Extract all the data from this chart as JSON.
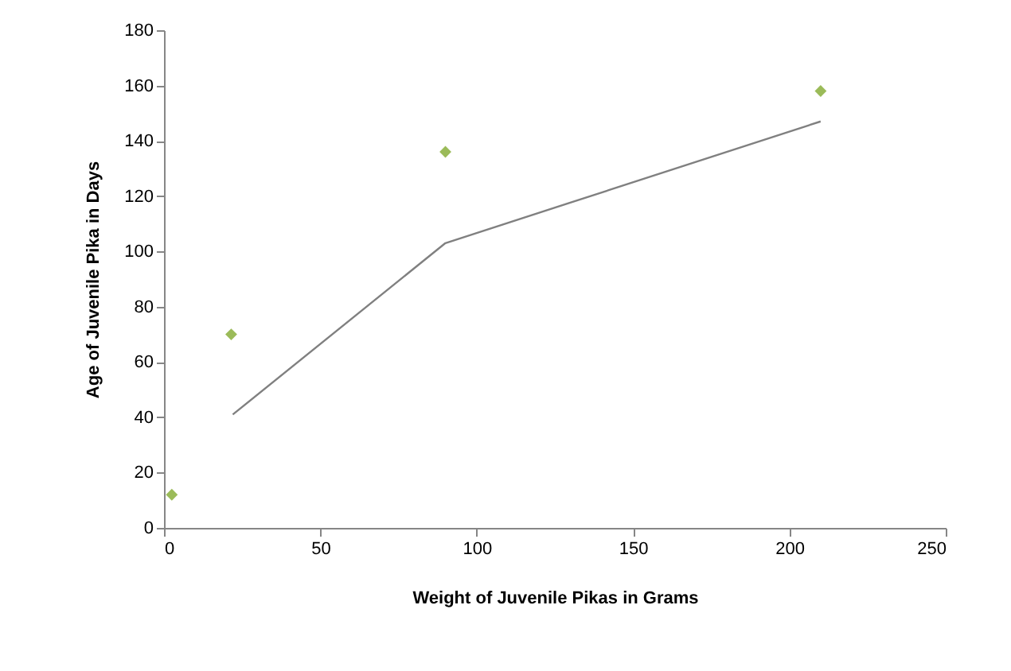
{
  "chart_data": {
    "type": "scatter",
    "xlabel": "Weight of Juvenile Pikas in Grams",
    "ylabel": "Age of Juvenile Pika in Days",
    "xlim": [
      0,
      250
    ],
    "xticks": [
      0,
      50,
      100,
      150,
      200,
      250
    ],
    "ylim": [
      0,
      180
    ],
    "yticks": [
      0,
      20,
      40,
      60,
      80,
      100,
      120,
      140,
      160,
      180
    ],
    "grid": false,
    "series": [
      {
        "color": "#9bbb59",
        "marker": "diamond",
        "x": [
          2.5,
          21.5,
          90,
          210
        ],
        "values": [
          12,
          70,
          136,
          158
        ]
      },
      {
        "type": "line",
        "color": "#808080",
        "x": [
          22,
          90,
          210
        ],
        "values": [
          41,
          103,
          147
        ]
      }
    ]
  }
}
